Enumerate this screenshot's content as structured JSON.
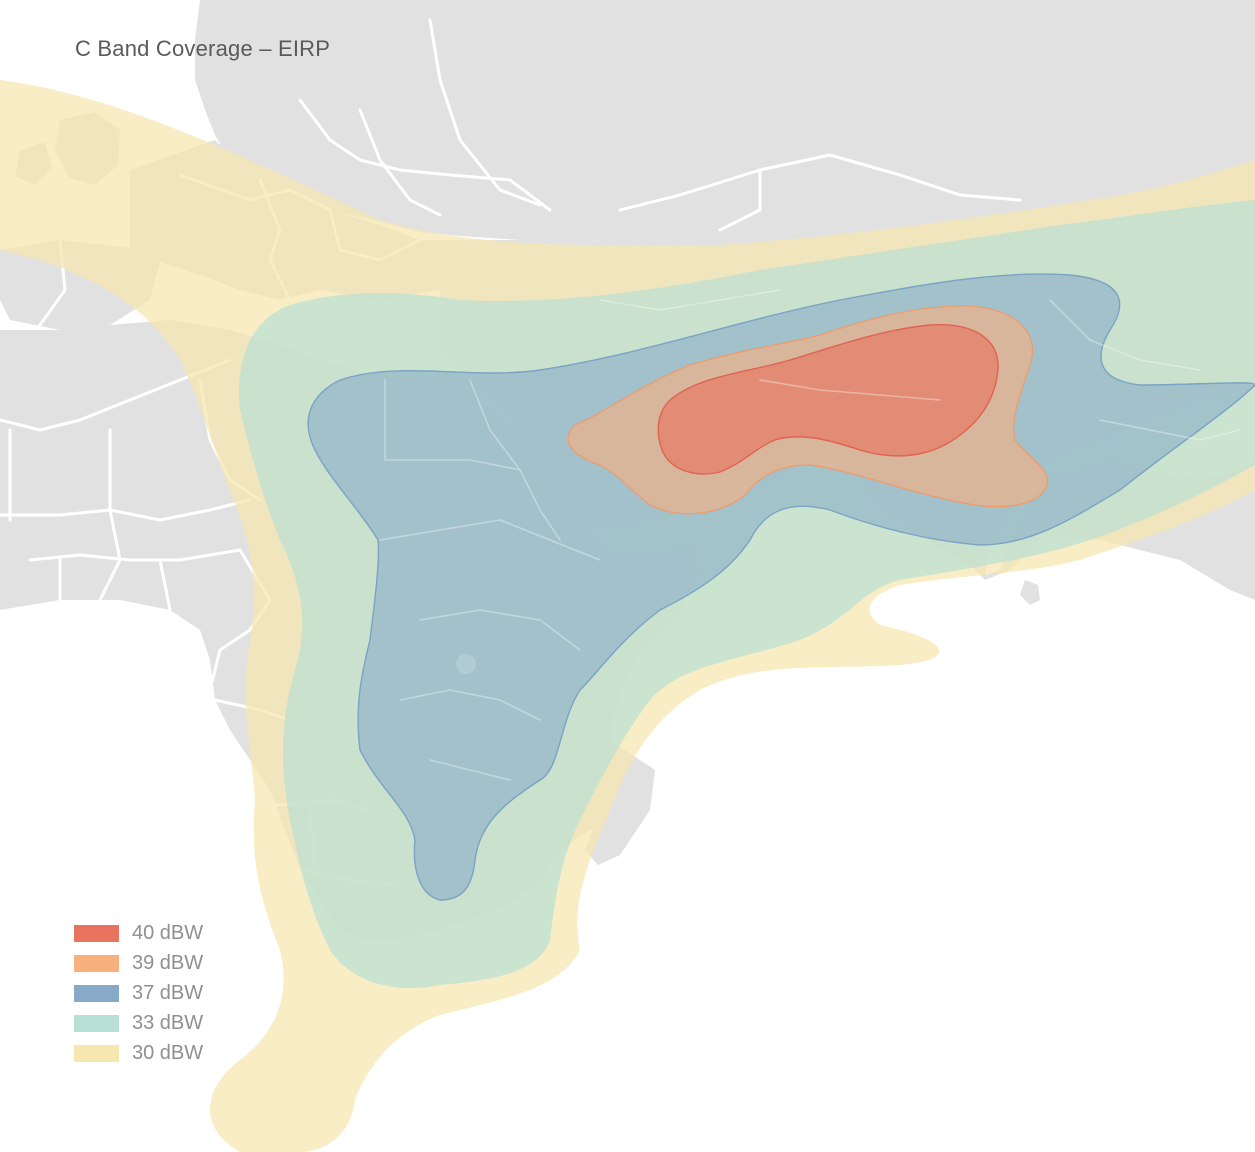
{
  "title": "C Band Coverage – EIRP",
  "legend": [
    {
      "label": "40 dBW",
      "color": "#e8735f"
    },
    {
      "label": "39 dBW",
      "color": "#f8b07f"
    },
    {
      "label": "37 dBW",
      "color": "#86aac8"
    },
    {
      "label": "33 dBW",
      "color": "#b8e0d4"
    },
    {
      "label": "30 dBW",
      "color": "#f6e6af"
    }
  ],
  "colors": {
    "land": "#e1e1e1",
    "borders": "#ffffff",
    "title": "#5a5a5a",
    "legend_text": "#8f8f8f"
  }
}
